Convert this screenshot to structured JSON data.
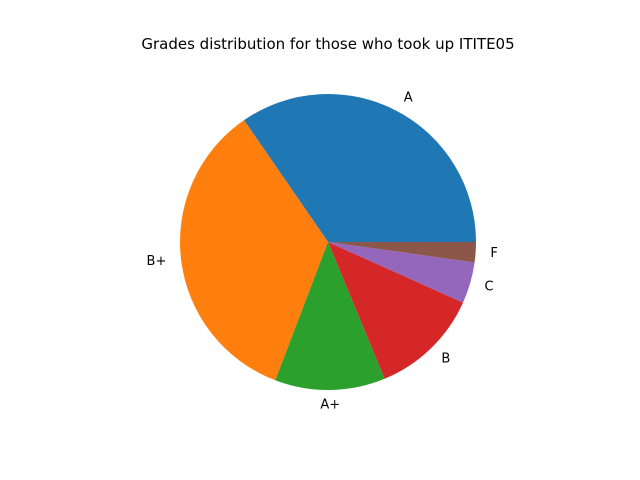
{
  "chart_data": {
    "type": "pie",
    "title": "Grades distribution for those who took up ITITE05",
    "slices": [
      {
        "label": "A",
        "value": 34.5,
        "color": "#1f77b4"
      },
      {
        "label": "B+",
        "value": 34.5,
        "color": "#ff7f0e"
      },
      {
        "label": "A+",
        "value": 12.0,
        "color": "#2ca02c"
      },
      {
        "label": "B",
        "value": 12.0,
        "color": "#d62728"
      },
      {
        "label": "C",
        "value": 4.5,
        "color": "#9467bd"
      },
      {
        "label": "F",
        "value": 2.2,
        "color": "#8c564b"
      }
    ],
    "start_angle_deg": 0,
    "direction": "counterclockwise",
    "legend": "none"
  }
}
